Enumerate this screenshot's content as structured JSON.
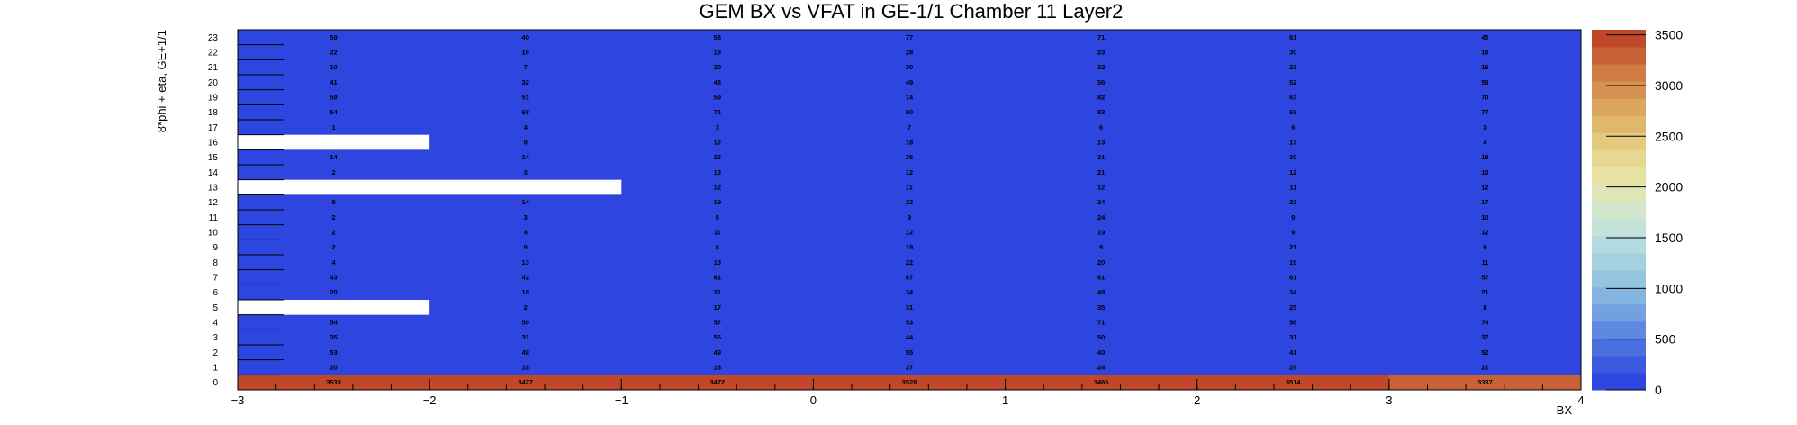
{
  "chart_data": {
    "type": "heatmap",
    "title": "GEM BX vs VFAT in GE-1/1 Chamber 11 Layer2",
    "xlabel": "BX",
    "ylabel": "8*phi + eta, GE+1/1",
    "x_tick_labels": [
      "−3",
      "−2",
      "−1",
      "0",
      "1",
      "2",
      "3",
      "4"
    ],
    "x_bins": [
      -2.5,
      -1.5,
      -0.5,
      0.5,
      1.5,
      2.5,
      3.5
    ],
    "y_bins": [
      0,
      1,
      2,
      3,
      4,
      5,
      6,
      7,
      8,
      9,
      10,
      11,
      12,
      13,
      14,
      15,
      16,
      17,
      18,
      19,
      20,
      21,
      22,
      23
    ],
    "empty_cells": [
      {
        "y": 5,
        "x_from": -3,
        "x_to": -2
      },
      {
        "y": 13,
        "x_from": -3,
        "x_to": -1
      },
      {
        "y": 16,
        "x_from": -3,
        "x_to": -2
      }
    ],
    "values": [
      [
        3533,
        3427,
        3472,
        3528,
        3465,
        3514,
        3337
      ],
      [
        20,
        18,
        18,
        27,
        24,
        29,
        21
      ],
      [
        53,
        48,
        49,
        55,
        40,
        41,
        52
      ],
      [
        35,
        31,
        55,
        44,
        50,
        31,
        37
      ],
      [
        54,
        50,
        57,
        53,
        71,
        58,
        74
      ],
      [
        null,
        2,
        17,
        31,
        35,
        25,
        8
      ],
      [
        20,
        18,
        31,
        34,
        48,
        34,
        21
      ],
      [
        43,
        42,
        61,
        67,
        61,
        61,
        57
      ],
      [
        4,
        13,
        13,
        22,
        20,
        19,
        11
      ],
      [
        2,
        9,
        8,
        19,
        9,
        21,
        9
      ],
      [
        2,
        4,
        11,
        12,
        19,
        9,
        12
      ],
      [
        2,
        3,
        8,
        9,
        24,
        9,
        10
      ],
      [
        9,
        14,
        19,
        22,
        24,
        23,
        17
      ],
      [
        null,
        null,
        12,
        11,
        12,
        11,
        12
      ],
      [
        2,
        3,
        13,
        12,
        21,
        12,
        10
      ],
      [
        14,
        14,
        23,
        36,
        31,
        30,
        19
      ],
      [
        null,
        9,
        12,
        18,
        13,
        13,
        4
      ],
      [
        1,
        4,
        3,
        7,
        6,
        6,
        3
      ],
      [
        54,
        68,
        71,
        90,
        83,
        68,
        77
      ],
      [
        59,
        51,
        59,
        74,
        82,
        63,
        70
      ],
      [
        41,
        32,
        48,
        49,
        56,
        52,
        59
      ],
      [
        10,
        7,
        20,
        30,
        32,
        23,
        16
      ],
      [
        22,
        16,
        18,
        28,
        23,
        30,
        16
      ],
      [
        59,
        40,
        58,
        77,
        71,
        81,
        45
      ]
    ],
    "xlim": [
      -3,
      4
    ],
    "ylim": [
      0,
      24
    ],
    "zlim": [
      0,
      3550
    ],
    "colorbar_ticks": [
      "0",
      "500",
      "1000",
      "1500",
      "2000",
      "2500",
      "3000",
      "3500"
    ],
    "colorbar_tick_values": [
      0,
      500,
      1000,
      1500,
      2000,
      2500,
      3000,
      3500
    ],
    "palette": [
      "#2f45e0",
      "#3a5ae0",
      "#4a70e0",
      "#5f88e0",
      "#72a0e0",
      "#86b4e0",
      "#95c4e0",
      "#a4d0e0",
      "#b4dce0",
      "#c4e2d8",
      "#d2e6cc",
      "#dee6b8",
      "#e6e2a4",
      "#e6d890",
      "#e4ca7e",
      "#e0b86c",
      "#dca660",
      "#d69052",
      "#d07a44",
      "#c86236",
      "#c0482a"
    ],
    "grid": false,
    "legend": "none",
    "fill_color": "#2f45e0"
  }
}
